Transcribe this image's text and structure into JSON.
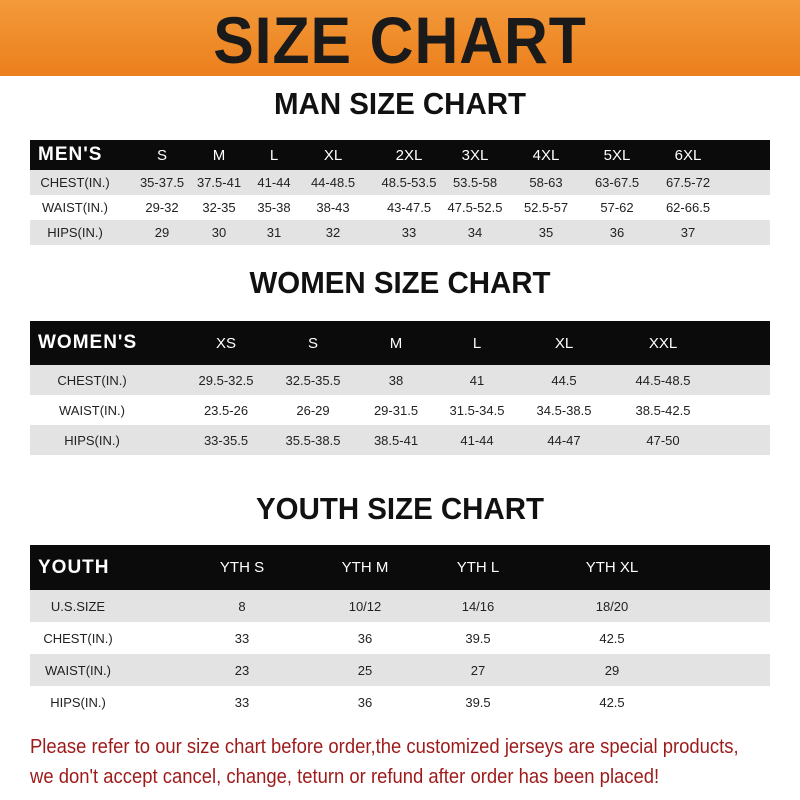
{
  "banner": {
    "title": "SIZE CHART",
    "color": "#ee8424"
  },
  "men": {
    "title": "MAN SIZE CHART",
    "header": [
      "MEN'S",
      "S",
      "M",
      "L",
      "XL",
      "2XL",
      "3XL",
      "4XL",
      "5XL",
      "6XL"
    ],
    "rows": [
      [
        "CHEST(IN.)",
        "35-37.5",
        "37.5-41",
        "41-44",
        "44-48.5",
        "48.5-53.5",
        "53.5-58",
        "58-63",
        "63-67.5",
        "67.5-72"
      ],
      [
        "WAIST(IN.)",
        "29-32",
        "32-35",
        "35-38",
        "38-43",
        "43-47.5",
        "47.5-52.5",
        "52.5-57",
        "57-62",
        "62-66.5"
      ],
      [
        "HIPS(IN.)",
        "29",
        "30",
        "31",
        "32",
        "33",
        "34",
        "35",
        "36",
        "37"
      ]
    ]
  },
  "women": {
    "title": "WOMEN SIZE CHART",
    "header": [
      "WOMEN'S",
      "XS",
      "S",
      "M",
      "L",
      "XL",
      "XXL"
    ],
    "rows": [
      [
        "CHEST(IN.)",
        "29.5-32.5",
        "32.5-35.5",
        "38",
        "41",
        "44.5",
        "44.5-48.5"
      ],
      [
        "WAIST(IN.)",
        "23.5-26",
        "26-29",
        "29-31.5",
        "31.5-34.5",
        "34.5-38.5",
        "38.5-42.5"
      ],
      [
        "HIPS(IN.)",
        "33-35.5",
        "35.5-38.5",
        "38.5-41",
        "41-44",
        "44-47",
        "47-50"
      ]
    ]
  },
  "youth": {
    "title": "YOUTH SIZE CHART",
    "header": [
      "YOUTH",
      "YTH S",
      "YTH M",
      "YTH L",
      "YTH XL"
    ],
    "rows": [
      [
        "U.S.SIZE",
        "8",
        "10/12",
        "14/16",
        "18/20"
      ],
      [
        "CHEST(IN.)",
        "33",
        "36",
        "39.5",
        "42.5"
      ],
      [
        "WAIST(IN.)",
        "23",
        "25",
        "27",
        "29"
      ],
      [
        "HIPS(IN.)",
        "33",
        "36",
        "39.5",
        "42.5"
      ]
    ]
  },
  "note": {
    "line1": "Please refer to our size chart before order,the customized jerseys are special products,",
    "line2": "we don't accept cancel, change, teturn or refund after order has been placed!",
    "color": "#9e1a1a"
  }
}
